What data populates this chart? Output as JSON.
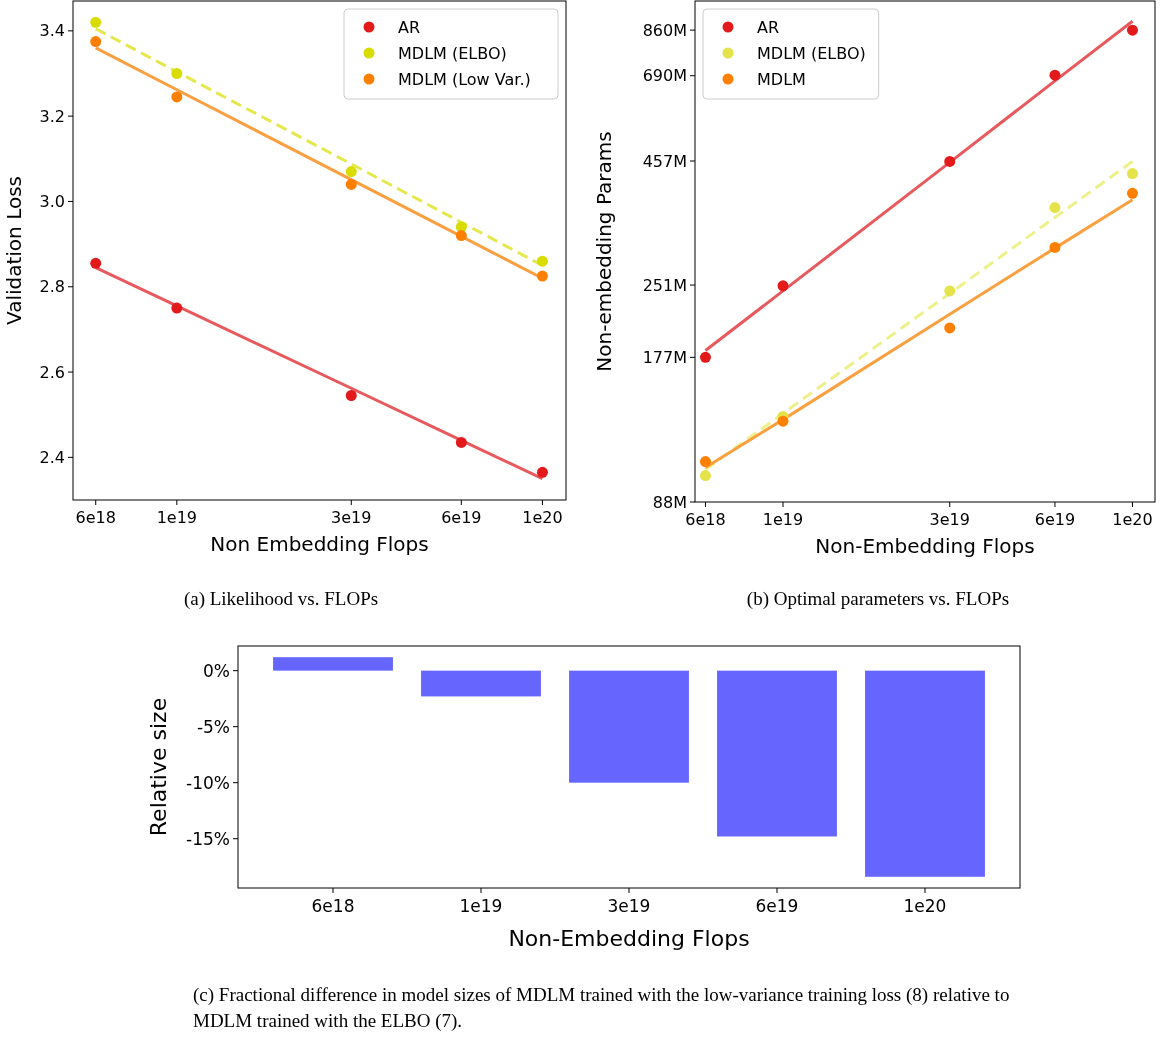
{
  "chart_data": [
    {
      "type": "scatter",
      "xlabel": "Non Embedding Flops",
      "ylabel": "Validation Loss",
      "log": "x",
      "grid": false,
      "legend": "top right",
      "marker": "circle",
      "x": [
        6e+18,
        1e+19,
        3e+19,
        6e+19,
        1e+20
      ],
      "xlim": [
        5.2e+18,
        1.16e+20
      ],
      "xticks": [
        {
          "value": 6e+18,
          "label": "6e18"
        },
        {
          "value": 1e+19,
          "label": "1e19"
        },
        {
          "value": 3e+19,
          "label": "3e19"
        },
        {
          "value": 6e+19,
          "label": "6e19"
        },
        {
          "value": 1e+20,
          "label": "1e20"
        }
      ],
      "ylim": [
        2.3,
        3.47
      ],
      "yticks": [
        {
          "value": 2.4,
          "label": "2.4"
        },
        {
          "value": 2.6,
          "label": "2.6"
        },
        {
          "value": 2.8,
          "label": "2.8"
        },
        {
          "value": 3.0,
          "label": "3.0"
        },
        {
          "value": 3.2,
          "label": "3.2"
        },
        {
          "value": 3.4,
          "label": "3.4"
        }
      ],
      "series": [
        {
          "type": "line",
          "color": "#e8595e",
          "values": [
            2.845,
            2.755,
            2.562,
            2.44,
            2.35
          ],
          "marker": "none",
          "line_style": "solid"
        },
        {
          "type": "line",
          "color": "#e5e84a",
          "values": [
            3.405,
            3.304,
            3.088,
            2.951,
            2.85
          ],
          "marker": "none",
          "line_style": "dashed"
        },
        {
          "type": "line",
          "color": "#fba040",
          "values": [
            3.36,
            3.262,
            3.051,
            2.918,
            2.82
          ],
          "marker": "none",
          "line_style": "solid"
        },
        {
          "name": "AR",
          "color": "#e31a1c",
          "values": [
            2.855,
            2.75,
            2.545,
            2.435,
            2.365
          ]
        },
        {
          "name": "MDLM (ELBO)",
          "color": "#d9dc00",
          "values": [
            3.42,
            3.3,
            3.07,
            2.94,
            2.86
          ]
        },
        {
          "name": "MDLM (Low Var.)",
          "color": "#ff7f00",
          "values": [
            3.375,
            3.245,
            3.04,
            2.92,
            2.825
          ]
        }
      ],
      "annotations": [
        "(a) Likelihood vs. FLOPs"
      ]
    },
    {
      "type": "scatter",
      "xlabel": "Non-Embedding Flops",
      "ylabel": "Non-embedding Params",
      "log": "xy",
      "grid": false,
      "legend": "top left",
      "marker": "circle",
      "x": [
        6e+18,
        1e+19,
        3e+19,
        6e+19,
        1e+20
      ],
      "xlim": [
        5.6e+18,
        1.16e+20
      ],
      "xticks": [
        {
          "value": 6e+18,
          "label": "6e18"
        },
        {
          "value": 1e+19,
          "label": "1e19"
        },
        {
          "value": 3e+19,
          "label": "3e19"
        },
        {
          "value": 6e+19,
          "label": "6e19"
        },
        {
          "value": 1e+20,
          "label": "1e20"
        }
      ],
      "ylim": [
        88,
        990
      ],
      "yticks": [
        {
          "value": 88,
          "label": "88M"
        },
        {
          "value": 177,
          "label": "177M"
        },
        {
          "value": 251,
          "label": "251M"
        },
        {
          "value": 457,
          "label": "457M"
        },
        {
          "value": 690,
          "label": "690M"
        },
        {
          "value": 860,
          "label": "860M"
        }
      ],
      "series": [
        {
          "type": "line",
          "color": "#e8595e",
          "values": [
            183,
            244,
            454,
            673,
            898
          ],
          "marker": "none",
          "line_style": "solid"
        },
        {
          "type": "line",
          "color": "#eef08a",
          "values": [
            103,
            135,
            241,
            348,
            456
          ],
          "marker": "none",
          "line_style": "dashed"
        },
        {
          "type": "line",
          "color": "#fba040",
          "values": [
            104,
            131,
            218,
            300,
            379
          ],
          "marker": "none",
          "line_style": "solid"
        },
        {
          "name": "AR",
          "color": "#e31a1c",
          "values": [
            177,
            250,
            456,
            692,
            860
          ]
        },
        {
          "name": "MDLM (ELBO)",
          "color": "#e4e44a",
          "values": [
            100,
            133,
            244,
            365,
            430
          ]
        },
        {
          "name": "MDLM",
          "color": "#ff7f00",
          "values": [
            107,
            130,
            204,
            301,
            391
          ]
        }
      ],
      "annotations": [
        "(b) Optimal parameters vs. FLOPs"
      ]
    },
    {
      "type": "bar",
      "xlabel": "Non-Embedding Flops",
      "ylabel": "Relative size",
      "grid": false,
      "categories": [
        "6e18",
        "1e19",
        "3e19",
        "6e19",
        "1e20"
      ],
      "values": [
        1.2,
        -2.3,
        -10.0,
        -14.8,
        -18.4
      ],
      "color": "#6666ff",
      "ylim": [
        -19.4,
        2.2
      ],
      "yticks": [
        {
          "value": -15,
          "label": "-15%"
        },
        {
          "value": -10,
          "label": "-10%"
        },
        {
          "value": -5,
          "label": "-5%"
        },
        {
          "value": 0,
          "label": "0%"
        }
      ],
      "annotations": [
        "(c) Fractional difference in model sizes of MDLM trained with the low-variance training loss (8) relative to MDLM trained with the ELBO (7)."
      ]
    }
  ]
}
